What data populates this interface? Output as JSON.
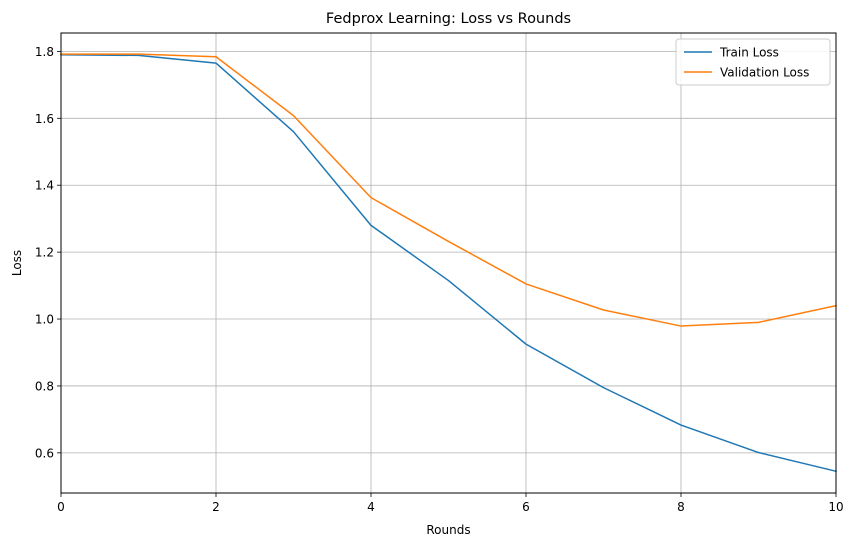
{
  "chart_data": {
    "type": "line",
    "title": "Fedprox Learning: Loss vs Rounds",
    "xlabel": "Rounds",
    "ylabel": "Loss",
    "xlim": [
      0,
      10
    ],
    "ylim": [
      0.48,
      1.855
    ],
    "xticks": [
      0,
      2,
      4,
      6,
      8,
      10
    ],
    "yticks": [
      0.6,
      0.8,
      1.0,
      1.2,
      1.4,
      1.6,
      1.8
    ],
    "ytick_labels": [
      "0.6",
      "0.8",
      "1.0",
      "1.2",
      "1.4",
      "1.6",
      "1.8"
    ],
    "grid": true,
    "legend": "top-right",
    "x": [
      0,
      1,
      2,
      3,
      4,
      5,
      6,
      7,
      8,
      9,
      10
    ],
    "series": [
      {
        "name": "Train Loss",
        "color": "#1f77b4",
        "values": [
          1.79,
          1.788,
          1.765,
          1.56,
          1.28,
          1.115,
          0.925,
          0.795,
          0.683,
          0.601,
          0.545
        ]
      },
      {
        "name": "Validation Loss",
        "color": "#ff7f0e",
        "values": [
          1.792,
          1.792,
          1.784,
          1.608,
          1.363,
          1.232,
          1.105,
          1.027,
          0.979,
          0.99,
          1.04
        ]
      }
    ]
  }
}
